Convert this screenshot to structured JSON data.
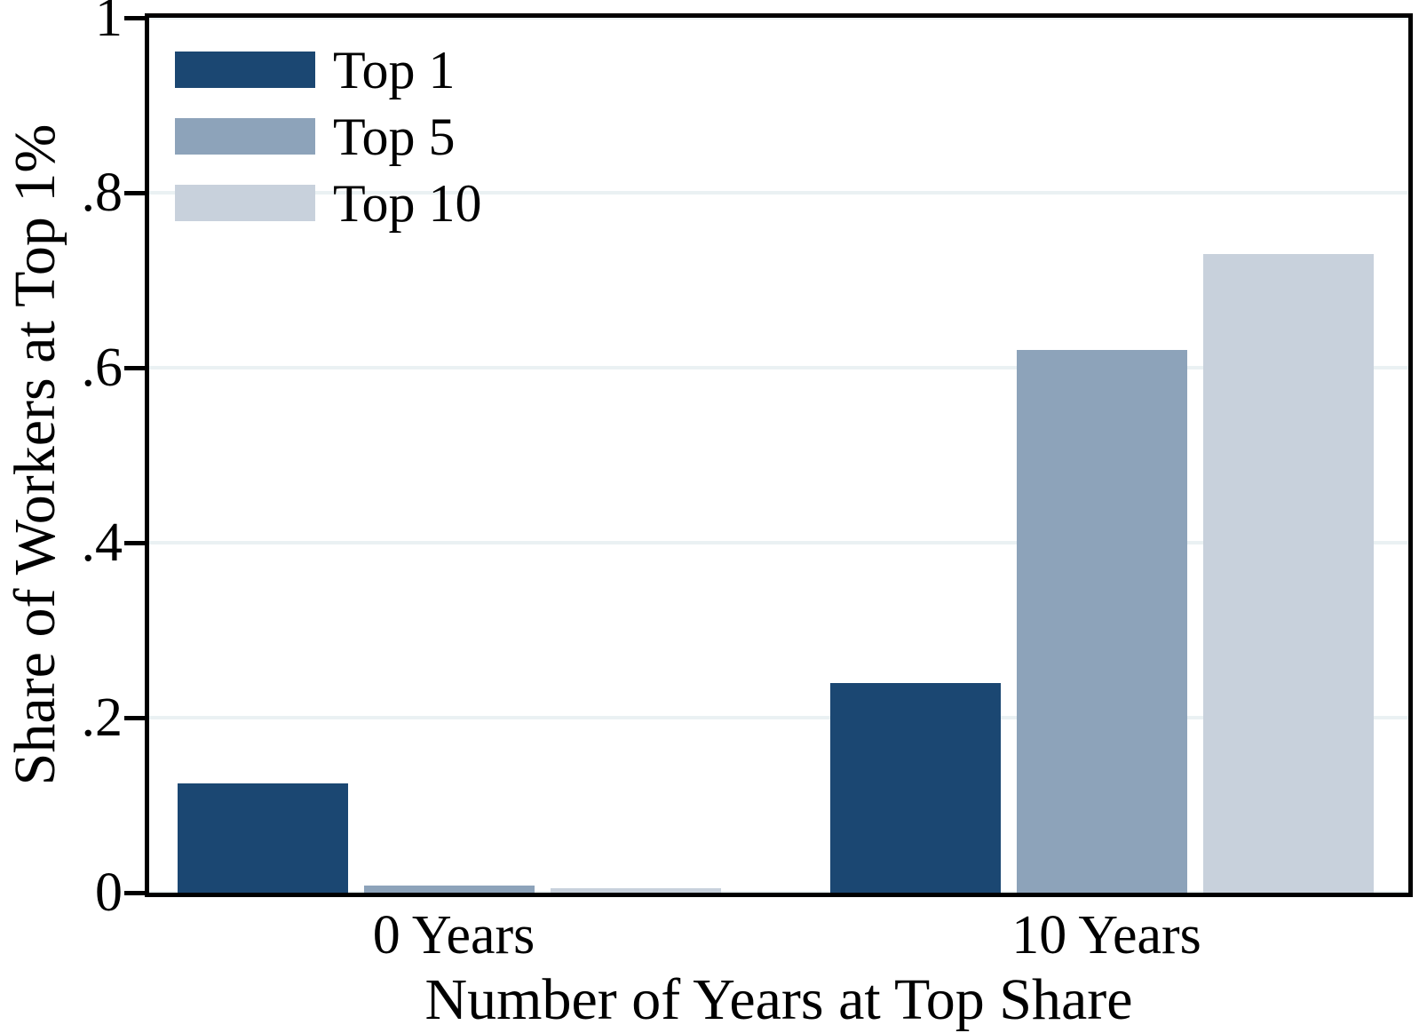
{
  "figure": {
    "background_color": "#ffffff",
    "text_color": "#000000"
  },
  "chart_data": {
    "type": "bar",
    "title": "",
    "xlabel": "Number of Years at Top Share",
    "ylabel": "Share of Workers at Top 1%",
    "categories": [
      "0 Years",
      "10 Years"
    ],
    "series": [
      {
        "name": "Top 1",
        "color": "#1b4772",
        "values": [
          0.125,
          0.24
        ]
      },
      {
        "name": "Top 5",
        "color": "#8da3ba",
        "values": [
          0.008,
          0.62
        ]
      },
      {
        "name": "Top 10",
        "color": "#c8d1dc",
        "values": [
          0.005,
          0.73
        ]
      }
    ],
    "ylim": [
      0,
      1
    ],
    "yticks": [
      0,
      0.2,
      0.4,
      0.6,
      0.8,
      1
    ],
    "ytick_labels": [
      "0",
      ".2",
      ".4",
      ".6",
      ".8",
      "1"
    ],
    "grid": true,
    "gridline_color": "#eaf1f3",
    "axis_color": "#000000",
    "legend_position": "top-left-inside"
  }
}
